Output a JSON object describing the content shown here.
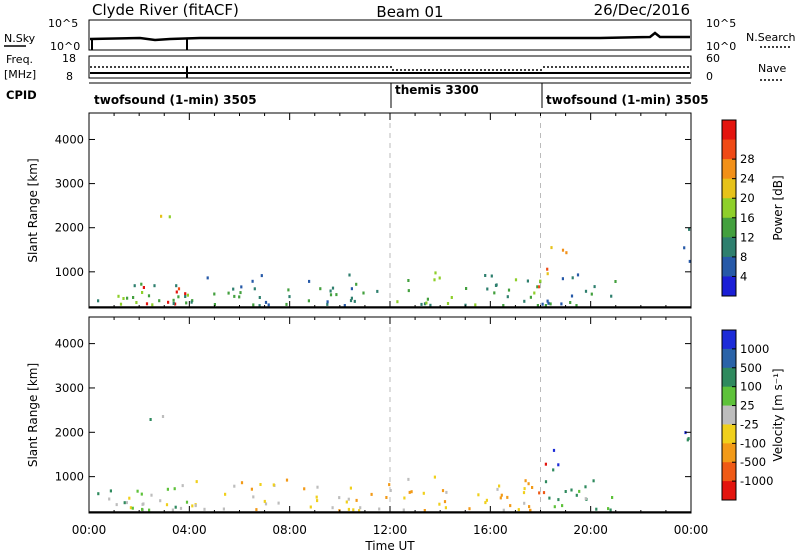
{
  "header": {
    "station": "Clyde River (fitACF)",
    "beam": "Beam 01",
    "date": "26/Dec/2016"
  },
  "strip_noise": {
    "left_label": "N.Sky",
    "left_ticks": [
      "10^5",
      "10^0"
    ],
    "right_ticks": [
      "10^5",
      "10^0"
    ],
    "right_label": "N.Search"
  },
  "strip_freq": {
    "left_label_1": "Freq.",
    "left_label_2": "[MHz]",
    "left_ticks": [
      "18",
      "8"
    ],
    "right_ticks": [
      "60",
      "0"
    ],
    "right_label": "Nave"
  },
  "cpid": {
    "label": "CPID",
    "segments": [
      {
        "name": "twofsound (1-min) 3505",
        "start_h": 0,
        "end_h": 12
      },
      {
        "name": "themis 3300",
        "start_h": 12,
        "end_h": 18
      },
      {
        "name": "twofsound (1-min) 3505",
        "start_h": 18,
        "end_h": 24
      }
    ]
  },
  "chart_data": [
    {
      "type": "heatmap",
      "panel": "power",
      "ylabel": "Slant Range [km]",
      "ylim": [
        180,
        4600
      ],
      "y_ticks": [
        "1000",
        "2000",
        "3000",
        "4000"
      ],
      "y_tick_values": [
        1000,
        2000,
        3000,
        4000
      ],
      "colorbar": {
        "label": "Power [dB]",
        "ticks": [
          "4",
          "8",
          "12",
          "16",
          "20",
          "24",
          "28"
        ],
        "colors": [
          "#1b1fd6",
          "#2659a8",
          "#2e7f6e",
          "#43a03e",
          "#8ecf2a",
          "#e6c21a",
          "#f29018",
          "#ef4a16",
          "#e3140e"
        ]
      },
      "echo_regions": [
        {
          "t0": 1.8,
          "t1": 3.8,
          "r0": 200,
          "r1": 700,
          "level": 8
        },
        {
          "t0": 0.3,
          "t1": 4.0,
          "r0": 200,
          "r1": 1000,
          "level": 3
        },
        {
          "t0": 2.0,
          "t1": 3.3,
          "r0": 2100,
          "r1": 2350,
          "level": 5
        },
        {
          "t0": 4.0,
          "t1": 12.0,
          "r0": 200,
          "r1": 900,
          "level": 2
        },
        {
          "t0": 12.0,
          "t1": 18.0,
          "r0": 200,
          "r1": 1000,
          "level": 3
        },
        {
          "t0": 17.9,
          "t1": 18.3,
          "r0": 600,
          "r1": 1600,
          "level": 6
        },
        {
          "t0": 18.3,
          "t1": 19.0,
          "r0": 1100,
          "r1": 1700,
          "level": 5
        },
        {
          "t0": 18.0,
          "t1": 21.0,
          "r0": 200,
          "r1": 1000,
          "level": 2
        },
        {
          "t0": 23.6,
          "t1": 24.0,
          "r0": 1200,
          "r1": 2200,
          "level": 2
        }
      ]
    },
    {
      "type": "heatmap",
      "panel": "velocity",
      "ylabel": "Slant Range [km]",
      "xlabel": "Time UT",
      "ylim": [
        180,
        4600
      ],
      "y_ticks": [
        "1000",
        "2000",
        "3000",
        "4000"
      ],
      "y_tick_values": [
        1000,
        2000,
        3000,
        4000
      ],
      "x_ticks": [
        "00:00",
        "04:00",
        "08:00",
        "12:00",
        "16:00",
        "20:00",
        "00:00"
      ],
      "x_tick_values": [
        0,
        4,
        8,
        12,
        16,
        20,
        24
      ],
      "xlim": [
        0,
        24
      ],
      "colorbar": {
        "label": "Velocity [m s⁻¹]",
        "ticks": [
          "1000",
          "500",
          "100",
          "25",
          "-25",
          "-100",
          "-500",
          "-1000"
        ],
        "colors": [
          "#1c2bd8",
          "#2a63a8",
          "#2f8a5e",
          "#5ec23a",
          "#bdbdbd",
          "#f0d01c",
          "#f29a18",
          "#ef5a16",
          "#e3140e"
        ]
      },
      "echo_regions": [
        {
          "t0": 1.5,
          "t1": 3.5,
          "r0": 200,
          "r1": 900,
          "level": 4
        },
        {
          "t0": 0.3,
          "t1": 4.0,
          "r0": 200,
          "r1": 800,
          "level": 3
        },
        {
          "t0": 2.0,
          "t1": 3.3,
          "r0": 2100,
          "r1": 2350,
          "level": 3
        },
        {
          "t0": 4.0,
          "t1": 12.0,
          "r0": 200,
          "r1": 900,
          "level": 5
        },
        {
          "t0": 12.0,
          "t1": 18.0,
          "r0": 200,
          "r1": 1000,
          "level": 5
        },
        {
          "t0": 17.9,
          "t1": 18.3,
          "r0": 600,
          "r1": 1600,
          "level": 7
        },
        {
          "t0": 18.3,
          "t1": 19.0,
          "r0": 1100,
          "r1": 1700,
          "level": 1
        },
        {
          "t0": 18.0,
          "t1": 21.0,
          "r0": 200,
          "r1": 1000,
          "level": 3
        },
        {
          "t0": 23.6,
          "t1": 24.0,
          "r0": 1200,
          "r1": 2200,
          "level": 1
        }
      ]
    }
  ]
}
